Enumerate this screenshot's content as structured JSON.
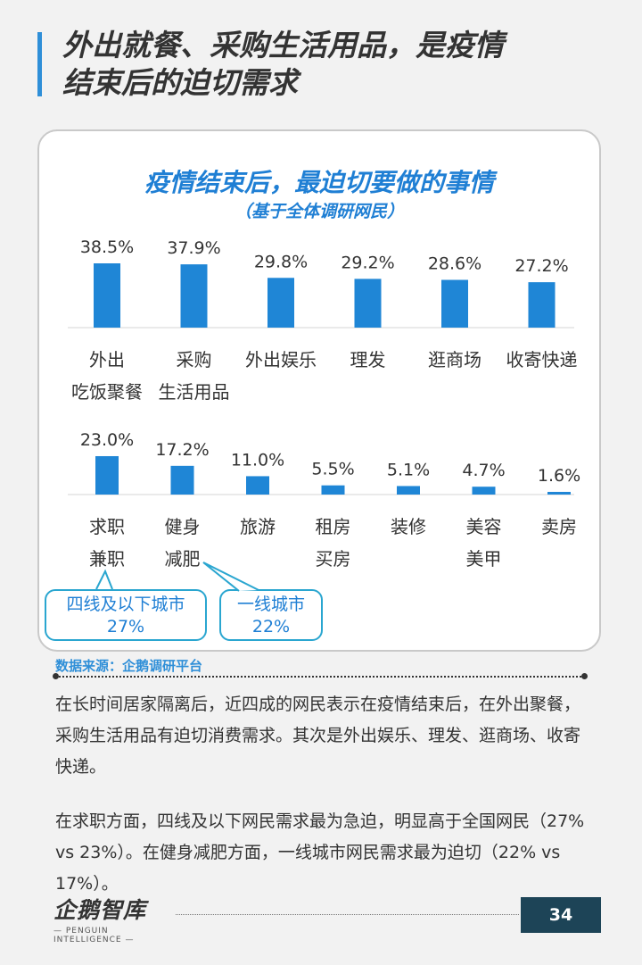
{
  "header": {
    "title_line1": "外出就餐、采购生活用品，是疫情",
    "title_line2": "结束后的迫切需求"
  },
  "chart_data": {
    "type": "bar",
    "title": "疫情结束后，最迫切要做的事情",
    "subtitle": "（基于全体调研网民）",
    "unit": "%",
    "rows": [
      {
        "categories": [
          [
            "外出",
            "吃饭聚餐"
          ],
          [
            "采购",
            "生活用品"
          ],
          [
            "外出娱乐"
          ],
          [
            "理发"
          ],
          [
            "逛商场"
          ],
          [
            "收寄快递"
          ]
        ],
        "values": [
          38.5,
          37.9,
          29.8,
          29.2,
          28.6,
          27.2
        ],
        "labels": [
          "38.5%",
          "37.9%",
          "29.8%",
          "29.2%",
          "28.6%",
          "27.2%"
        ]
      },
      {
        "categories": [
          [
            "求职",
            "兼职"
          ],
          [
            "健身",
            "减肥"
          ],
          [
            "旅游"
          ],
          [
            "租房",
            "买房"
          ],
          [
            "装修"
          ],
          [
            "美容",
            "美甲"
          ],
          [
            "卖房"
          ]
        ],
        "values": [
          23.0,
          17.2,
          11.0,
          5.5,
          5.1,
          4.7,
          1.6
        ],
        "labels": [
          "23.0%",
          "17.2%",
          "11.0%",
          "5.5%",
          "5.1%",
          "4.7%",
          "1.6%"
        ]
      }
    ],
    "bar_color": "#1f86d6",
    "grid": false
  },
  "callouts": [
    {
      "line1": "四线及以下城市",
      "line2": "27%"
    },
    {
      "line1": "一线城市",
      "line2": "22%"
    }
  ],
  "source": "数据来源：企鹅调研平台",
  "body": {
    "para1": "在长时间居家隔离后，近四成的网民表示在疫情结束后，在外出聚餐，采购生活用品有迫切消费需求。其次是外出娱乐、理发、逛商场、收寄快递。",
    "para2": "在求职方面，四线及以下网民需求最为急迫，明显高于全国网民（27% vs 23%）。在健身减肥方面，一线城市网民需求最为迫切（22% vs 17%）。"
  },
  "footer": {
    "logo": "企鹅智库",
    "logo_sub": "— PENGUIN INTELLIGENCE —",
    "page": "34"
  },
  "colors": {
    "accent": "#2f8fd8",
    "callout_border": "#2aa6d0",
    "badge": "#1d4457"
  }
}
